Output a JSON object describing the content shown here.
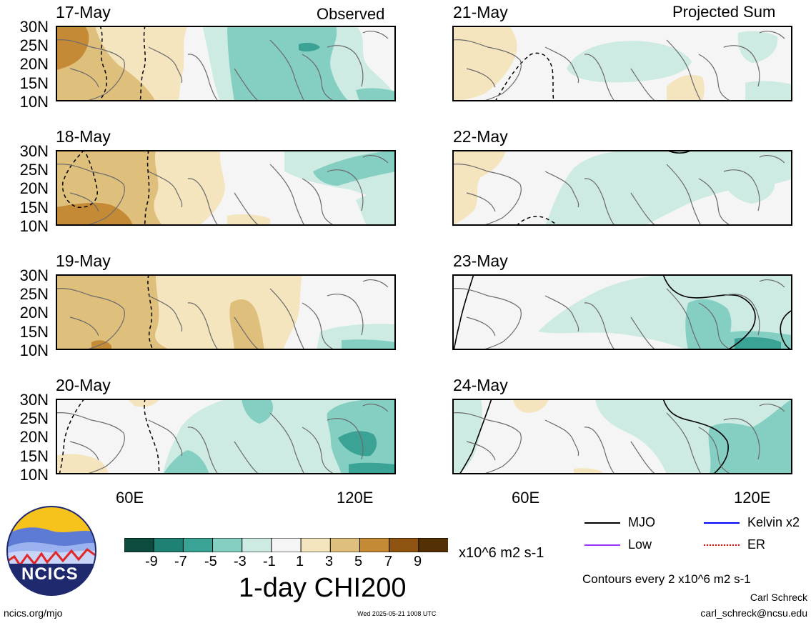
{
  "left_header": "Observed",
  "right_header": "Projected Sum",
  "panels_left": [
    {
      "date": "17-May"
    },
    {
      "date": "18-May"
    },
    {
      "date": "19-May"
    },
    {
      "date": "20-May"
    }
  ],
  "panels_right": [
    {
      "date": "21-May"
    },
    {
      "date": "22-May"
    },
    {
      "date": "23-May"
    },
    {
      "date": "24-May"
    }
  ],
  "lat_labels": [
    "30N",
    "25N",
    "20N",
    "15N",
    "10N"
  ],
  "lon_labels": [
    "60E",
    "120E"
  ],
  "colorbar": {
    "ticks": [
      "-9",
      "-7",
      "-5",
      "-3",
      "-1",
      "1",
      "3",
      "5",
      "7",
      "9"
    ],
    "colors": [
      "#0d4b3f",
      "#1f8173",
      "#3aa396",
      "#84cfc1",
      "#cdebe3",
      "#f5f5f5",
      "#f5e5bf",
      "#dfbf7c",
      "#c48a35",
      "#8f5312",
      "#543005"
    ],
    "units": "x10^6 m2 s-1",
    "title": "1-day CHI200"
  },
  "legend": {
    "items": [
      {
        "label": "MJO",
        "color": "#000000"
      },
      {
        "label": "Kelvin x2",
        "color": "#0000ff"
      },
      {
        "label": "Low",
        "color": "#9933ff"
      },
      {
        "label": "ER",
        "color": "#ff0000"
      }
    ],
    "contours_note": "Contours every 2 x10^6 m2 s-1"
  },
  "logo": {
    "text": "NCICS"
  },
  "footer": {
    "left": "ncics.org/mjo",
    "center": "Wed 2025-05-21 1008 UTC",
    "author": "Carl Schreck",
    "email": "carl_schreck@ncsu.edu"
  }
}
